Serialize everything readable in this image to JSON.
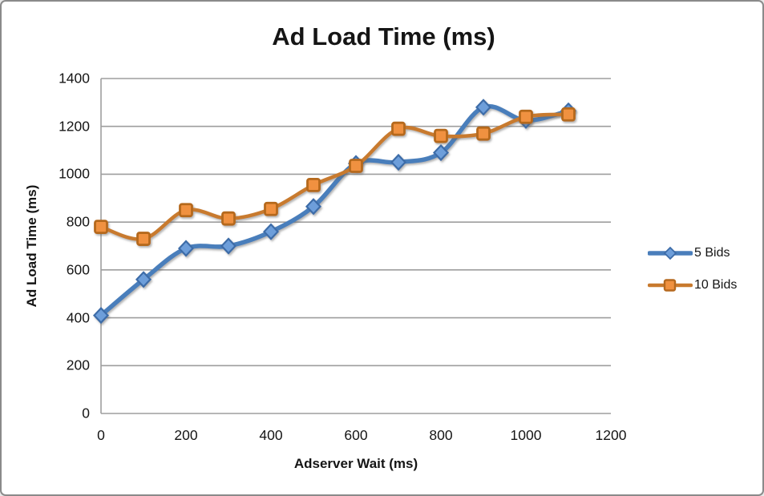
{
  "window": {
    "background": "#ffffff",
    "border_color": "#8a8a8a"
  },
  "chart_data": {
    "type": "line",
    "title": "Ad Load Time (ms)",
    "xlabel": "Adserver Wait (ms)",
    "ylabel": "Ad Load Time (ms)",
    "x": [
      0,
      100,
      200,
      300,
      400,
      500,
      600,
      700,
      800,
      900,
      1000,
      1100
    ],
    "series": [
      {
        "name": "5 Bids",
        "color": "#4a7ebb",
        "marker": "diamond",
        "marker_fill": "#6d9eda",
        "marker_stroke": "#3c6ca8",
        "values": [
          410,
          560,
          690,
          700,
          760,
          865,
          1045,
          1050,
          1090,
          1280,
          1225,
          1265
        ]
      },
      {
        "name": "10 Bids",
        "color": "#c87a2e",
        "marker": "square",
        "marker_fill": "#f0913f",
        "marker_stroke": "#b5691f",
        "values": [
          780,
          730,
          850,
          815,
          855,
          955,
          1035,
          1190,
          1160,
          1170,
          1240,
          1250
        ]
      }
    ],
    "xlim": [
      0,
      1200
    ],
    "ylim": [
      0,
      1400
    ],
    "xticks": [
      0,
      200,
      400,
      600,
      800,
      1000,
      1200
    ],
    "yticks": [
      0,
      200,
      400,
      600,
      800,
      1000,
      1200,
      1400
    ],
    "grid": true,
    "smooth": true,
    "legend_position": "right",
    "gridline_color": "#9e9e9e",
    "text_color": "#151515"
  }
}
